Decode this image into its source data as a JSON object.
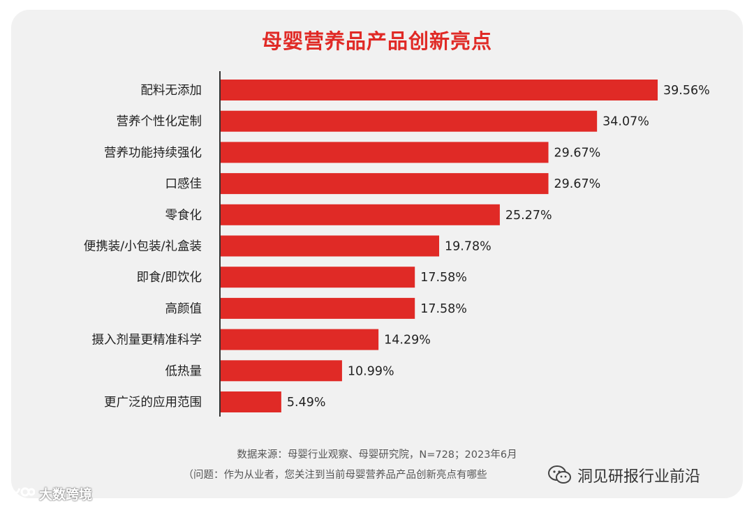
{
  "title": "母婴营养品产品创新亮点",
  "chart_data": {
    "type": "bar",
    "orientation": "horizontal",
    "title": "母婴营养品产品创新亮点",
    "categories": [
      "配料无添加",
      "营养个性化定制",
      "营养功能持续强化",
      "口感佳",
      "零食化",
      "便携装/小包装/礼盒装",
      "即食/即饮化",
      "高颜值",
      "摄入剂量更精准科学",
      "低热量",
      "更广泛的应用范围"
    ],
    "values": [
      39.56,
      34.07,
      29.67,
      29.67,
      25.27,
      19.78,
      17.58,
      17.58,
      14.29,
      10.99,
      5.49
    ],
    "value_labels": [
      "39.56%",
      "34.07%",
      "29.67%",
      "29.67%",
      "25.27%",
      "19.78%",
      "17.58%",
      "17.58%",
      "14.29%",
      "10.99%",
      "5.49%"
    ],
    "xlim": [
      0,
      40
    ],
    "xlabel": "",
    "ylabel": "",
    "grid": false,
    "bar_color": "#e02a26"
  },
  "footer": {
    "source": "数据来源：母婴行业观察、母婴研究院，N=728；2023年6月",
    "question": "（问题：作为从业者，您关注到当前母婴营养品产品创新亮点有哪些"
  },
  "watermarks": {
    "right_icon": "wechat-icon",
    "right_text": "洞见研报行业前沿",
    "left_icon": "logo-icon",
    "left_text": "大数跨境"
  }
}
